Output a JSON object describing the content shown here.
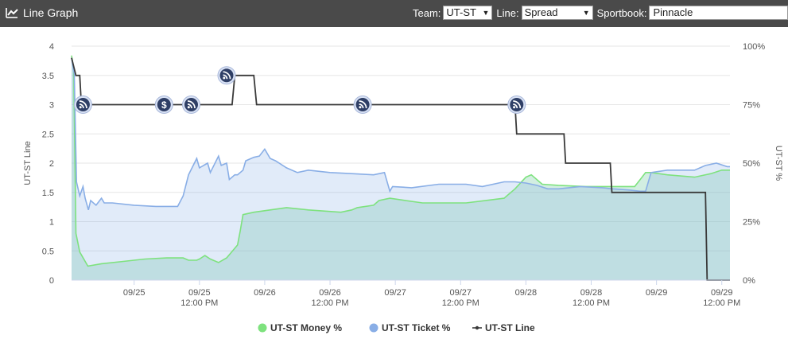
{
  "header": {
    "title": "Line Graph",
    "team_label": "Team:",
    "team_value": "UT-ST",
    "line_label": "Line:",
    "line_value": "Spread",
    "sportsbook_label": "Sportbook:",
    "sportsbook_value": "Pinnacle"
  },
  "chart_data": {
    "type": "line",
    "ylabel_left": "UT-ST Line",
    "ylabel_right": "UT-ST %",
    "y_left_ticks": [
      "0",
      "0.5",
      "1",
      "1.5",
      "2",
      "2.5",
      "3",
      "3.5",
      "4"
    ],
    "y_left_range": [
      0,
      4
    ],
    "y_right_ticks": [
      "0%",
      "25%",
      "50%",
      "75%",
      "100%"
    ],
    "y_right_range": [
      0,
      100
    ],
    "x_ticks": [
      {
        "t": 12,
        "l1": "09/25",
        "l2": ""
      },
      {
        "t": 24,
        "l1": "09/25",
        "l2": "12:00 PM"
      },
      {
        "t": 36,
        "l1": "09/26",
        "l2": ""
      },
      {
        "t": 48,
        "l1": "09/26",
        "l2": "12:00 PM"
      },
      {
        "t": 60,
        "l1": "09/27",
        "l2": ""
      },
      {
        "t": 72,
        "l1": "09/27",
        "l2": "12:00 PM"
      },
      {
        "t": 84,
        "l1": "09/28",
        "l2": ""
      },
      {
        "t": 96,
        "l1": "09/28",
        "l2": "12:00 PM"
      },
      {
        "t": 108,
        "l1": "09/29",
        "l2": ""
      },
      {
        "t": 120,
        "l1": "09/29",
        "l2": "12:00 PM"
      }
    ],
    "x_range_hours": [
      0.5,
      121.5
    ],
    "grid": true,
    "legend_position": "bottom-center",
    "series": [
      {
        "name": "UT-ST Money %",
        "color": "#7ee27e",
        "fill": "rgba(126,205,170,0.35)",
        "points": [
          [
            0.5,
            96
          ],
          [
            0.9,
            90
          ],
          [
            1.3,
            20
          ],
          [
            2,
            12
          ],
          [
            3.5,
            6
          ],
          [
            6,
            7
          ],
          [
            10,
            8
          ],
          [
            14,
            9
          ],
          [
            18,
            9.5
          ],
          [
            21,
            9.5
          ],
          [
            22,
            8.5
          ],
          [
            23.5,
            8.5
          ],
          [
            24,
            9
          ],
          [
            25,
            10.5
          ],
          [
            26,
            9
          ],
          [
            27.5,
            7.5
          ],
          [
            29,
            9.5
          ],
          [
            31,
            15
          ],
          [
            31.5,
            21
          ],
          [
            32,
            28
          ],
          [
            34,
            29
          ],
          [
            37,
            30
          ],
          [
            40,
            31
          ],
          [
            44,
            30
          ],
          [
            50,
            29
          ],
          [
            52,
            30
          ],
          [
            53,
            31
          ],
          [
            56,
            32
          ],
          [
            57,
            34
          ],
          [
            59,
            35
          ],
          [
            65,
            33
          ],
          [
            73,
            33
          ],
          [
            80,
            35
          ],
          [
            82,
            39
          ],
          [
            84,
            44
          ],
          [
            85,
            45
          ],
          [
            87,
            41
          ],
          [
            90,
            40.5
          ],
          [
            95,
            40
          ],
          [
            100,
            40
          ],
          [
            104,
            40
          ],
          [
            105,
            43
          ],
          [
            106,
            46
          ],
          [
            107,
            46
          ],
          [
            110,
            45
          ],
          [
            115,
            44
          ],
          [
            118,
            45.5
          ],
          [
            120,
            47
          ],
          [
            121,
            47
          ],
          [
            121.5,
            47
          ]
        ]
      },
      {
        "name": "UT-ST Ticket %",
        "color": "#89aee6",
        "fill": "rgba(137,174,230,0.25)",
        "points": [
          [
            0.5,
            95
          ],
          [
            1,
            88
          ],
          [
            1.4,
            42
          ],
          [
            2,
            36
          ],
          [
            2.6,
            40
          ],
          [
            3,
            35
          ],
          [
            3.6,
            30
          ],
          [
            4,
            34
          ],
          [
            5,
            32
          ],
          [
            6,
            35
          ],
          [
            6.5,
            33
          ],
          [
            8,
            33
          ],
          [
            12,
            32
          ],
          [
            16,
            31.5
          ],
          [
            20,
            31.5
          ],
          [
            21,
            36
          ],
          [
            22,
            45
          ],
          [
            23.5,
            52
          ],
          [
            24,
            48
          ],
          [
            25.5,
            50
          ],
          [
            26,
            46
          ],
          [
            27.5,
            53
          ],
          [
            28,
            49
          ],
          [
            29,
            50
          ],
          [
            29.5,
            43
          ],
          [
            30.5,
            45
          ],
          [
            31,
            45
          ],
          [
            32,
            47
          ],
          [
            32.5,
            51
          ],
          [
            34,
            52.5
          ],
          [
            35,
            53
          ],
          [
            36,
            56
          ],
          [
            37,
            52
          ],
          [
            38,
            51
          ],
          [
            40,
            48
          ],
          [
            42,
            46
          ],
          [
            44,
            47
          ],
          [
            48,
            46
          ],
          [
            52,
            45.5
          ],
          [
            56,
            45
          ],
          [
            58,
            46
          ],
          [
            59,
            38
          ],
          [
            59.5,
            40
          ],
          [
            63,
            39.5
          ],
          [
            68,
            41
          ],
          [
            73,
            41
          ],
          [
            76,
            40
          ],
          [
            80,
            42
          ],
          [
            82,
            42
          ],
          [
            84,
            41.5
          ],
          [
            86,
            40.5
          ],
          [
            88,
            39
          ],
          [
            90,
            39
          ],
          [
            94,
            40
          ],
          [
            98,
            39.5
          ],
          [
            100,
            39
          ],
          [
            103,
            38.5
          ],
          [
            105,
            38
          ],
          [
            106,
            38
          ],
          [
            107,
            46
          ],
          [
            110,
            47
          ],
          [
            115,
            47
          ],
          [
            117,
            49
          ],
          [
            119,
            50
          ],
          [
            121,
            48.5
          ],
          [
            121.5,
            48.5
          ]
        ]
      },
      {
        "name": "UT-ST Line",
        "color": "#3a3a3a",
        "points": [
          [
            0.5,
            3.8
          ],
          [
            1.3,
            3.5
          ],
          [
            2,
            3.5
          ],
          [
            2.3,
            3.0
          ],
          [
            30,
            3.0
          ],
          [
            30.5,
            3.5
          ],
          [
            34,
            3.5
          ],
          [
            34.5,
            3.0
          ],
          [
            82,
            3.0
          ],
          [
            82.3,
            2.5
          ],
          [
            91,
            2.5
          ],
          [
            91.3,
            2.0
          ],
          [
            99.5,
            2.0
          ],
          [
            99.8,
            1.5
          ],
          [
            117,
            1.5
          ],
          [
            117.3,
            0.0
          ],
          [
            121.5,
            0.0
          ]
        ],
        "markers": [
          {
            "t": 2.6,
            "y": 3.0,
            "icon": "rss-icon"
          },
          {
            "t": 17.5,
            "y": 3.0,
            "icon": "dollar-icon"
          },
          {
            "t": 22.5,
            "y": 3.0,
            "icon": "rss-icon"
          },
          {
            "t": 29,
            "y": 3.5,
            "icon": "rss-icon"
          },
          {
            "t": 54,
            "y": 3.0,
            "icon": "rss-icon"
          },
          {
            "t": 82.3,
            "y": 3.0,
            "icon": "rss-icon"
          }
        ]
      }
    ]
  }
}
